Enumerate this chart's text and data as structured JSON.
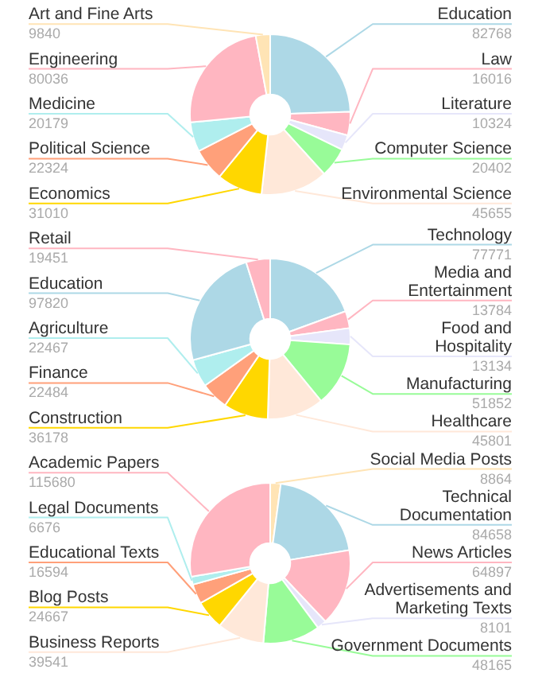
{
  "chart_data": [
    {
      "type": "donut",
      "categories": [
        "Education",
        "Law",
        "Literature",
        "Computer Science",
        "Environmental Science",
        "Economics",
        "Political Science",
        "Medicine",
        "Engineering",
        "Art and Fine Arts"
      ],
      "values": [
        82768,
        16016,
        10324,
        20402,
        45655,
        31010,
        22324,
        20179,
        80036,
        9840
      ],
      "colors": [
        "#add8e6",
        "#ffb6c1",
        "#e6e6fa",
        "#98fb98",
        "#ffe8d9",
        "#ffd700",
        "#ffa07a",
        "#afeeee",
        "#ffb6c1",
        "#ffe4b5"
      ],
      "data_labels": true,
      "legend": false
    },
    {
      "type": "donut",
      "categories": [
        "Technology",
        "Media and\nEntertainment",
        "Food and\nHospitality",
        "Manufacturing",
        "Healthcare",
        "Construction",
        "Finance",
        "Agriculture",
        "Education",
        "Retail"
      ],
      "values": [
        77771,
        13784,
        13134,
        51852,
        45801,
        36178,
        22484,
        22467,
        97820,
        19451
      ],
      "colors": [
        "#add8e6",
        "#ffb6c1",
        "#e6e6fa",
        "#98fb98",
        "#ffe8d9",
        "#ffd700",
        "#ffa07a",
        "#afeeee",
        "#add8e6",
        "#ffb6c1"
      ],
      "data_labels": true,
      "legend": false
    },
    {
      "type": "donut",
      "categories": [
        "Social Media Posts",
        "Technical\nDocumentation",
        "News Articles",
        "Advertisements and\nMarketing Texts",
        "Government Documents",
        "Business Reports",
        "Blog Posts",
        "Educational Texts",
        "Legal Documents",
        "Academic Papers"
      ],
      "values": [
        8864,
        84658,
        64897,
        8101,
        48165,
        39541,
        24667,
        16594,
        6676,
        115680
      ],
      "colors": [
        "#ffe4b5",
        "#add8e6",
        "#ffb6c1",
        "#e6e6fa",
        "#98fb98",
        "#ffe8d9",
        "#ffd700",
        "#ffa07a",
        "#afeeee",
        "#ffb6c1"
      ],
      "data_labels": true,
      "legend": false
    }
  ]
}
